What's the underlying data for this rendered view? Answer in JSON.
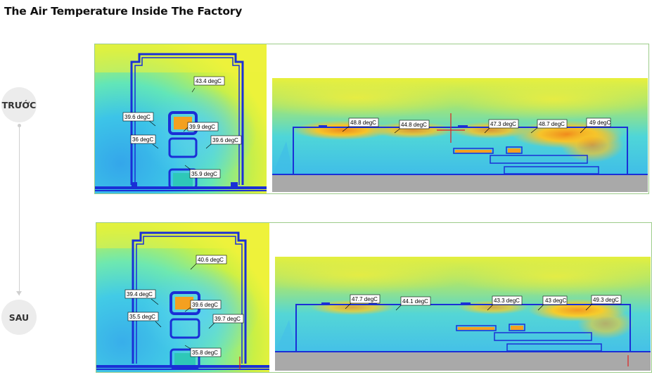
{
  "page": {
    "title": "The Air Temperature Inside The Factory"
  },
  "stages": [
    {
      "label": "TRƯỚC",
      "side_view_labels": [
        "43.4 degC",
        "39.6 degC",
        "39.9 degC",
        "36 degC",
        "39.6 degC",
        "35.9 degC"
      ],
      "long_view_labels": [
        "48.8 degC",
        "44.8 degC",
        "47.3 degC",
        "48.7 degC",
        "49 degC"
      ]
    },
    {
      "label": "SAU",
      "side_view_labels": [
        "40.6 degC",
        "39.4 degC",
        "39.6 degC",
        "35.5 degC",
        "39.7 degC",
        "35.8 degC"
      ],
      "long_view_labels": [
        "47.7 degC",
        "44.1 degC",
        "43.3 degC",
        "43 degC",
        "49.3 degC"
      ]
    }
  ],
  "colors": {
    "wall_blue": "#1a2fd6",
    "equipment_orange": "#f4a020",
    "floor_gray": "#a9a9a9",
    "marker_red": "#e02020",
    "timeline_gray": "#cfcfcf",
    "panel_border": "#9ccc8a"
  }
}
